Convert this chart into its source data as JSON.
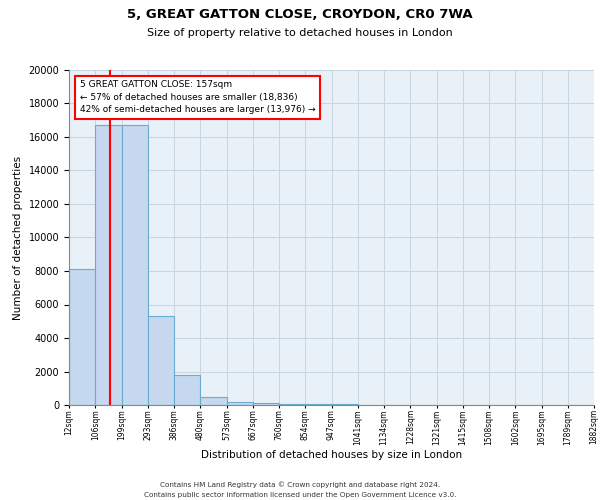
{
  "title1": "5, GREAT GATTON CLOSE, CROYDON, CR0 7WA",
  "title2": "Size of property relative to detached houses in London",
  "xlabel": "Distribution of detached houses by size in London",
  "ylabel": "Number of detached properties",
  "bin_edges": [
    12,
    106,
    199,
    293,
    386,
    480,
    573,
    667,
    760,
    854,
    947,
    1041,
    1134,
    1228,
    1321,
    1415,
    1508,
    1602,
    1695,
    1789,
    1882
  ],
  "bar_heights": [
    8100,
    16700,
    16700,
    5300,
    1800,
    500,
    200,
    100,
    60,
    40,
    30,
    20,
    15,
    10,
    8,
    6,
    4,
    3,
    2,
    1
  ],
  "bar_color": "#c5d8ef",
  "bar_edge_color": "#6aabd2",
  "red_line_x": 157,
  "annotation_title": "5 GREAT GATTON CLOSE: 157sqm",
  "annotation_line1": "← 57% of detached houses are smaller (18,836)",
  "annotation_line2": "42% of semi-detached houses are larger (13,976) →",
  "ylim": [
    0,
    20000
  ],
  "yticks": [
    0,
    2000,
    4000,
    6000,
    8000,
    10000,
    12000,
    14000,
    16000,
    18000,
    20000
  ],
  "xtick_labels": [
    "12sqm",
    "106sqm",
    "199sqm",
    "293sqm",
    "386sqm",
    "480sqm",
    "573sqm",
    "667sqm",
    "760sqm",
    "854sqm",
    "947sqm",
    "1041sqm",
    "1134sqm",
    "1228sqm",
    "1321sqm",
    "1415sqm",
    "1508sqm",
    "1602sqm",
    "1695sqm",
    "1789sqm",
    "1882sqm"
  ],
  "grid_color": "#c8d4e0",
  "background_color": "#e8f0f8",
  "footer1": "Contains HM Land Registry data © Crown copyright and database right 2024.",
  "footer2": "Contains public sector information licensed under the Open Government Licence v3.0."
}
